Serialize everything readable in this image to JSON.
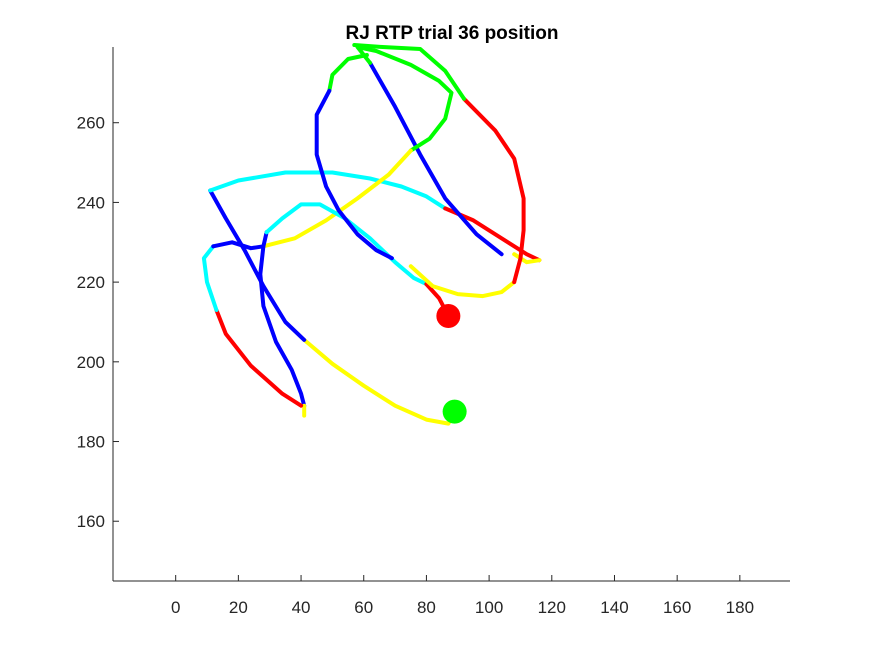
{
  "chart_data": {
    "type": "line",
    "title": "RJ  RTP trial 36 position",
    "xlabel": "",
    "ylabel": "",
    "xlim": [
      -20,
      196
    ],
    "ylim": [
      145,
      279
    ],
    "x_ticks": [
      0,
      20,
      40,
      60,
      80,
      100,
      120,
      140,
      160,
      180
    ],
    "y_ticks": [
      160,
      180,
      200,
      220,
      240,
      260
    ],
    "grid": false,
    "legend": "none",
    "colors": {
      "yellow": "#ffff00",
      "red": "#ff0000",
      "blue": "#0000ff",
      "cyan": "#00ffff",
      "green": "#00ff00"
    },
    "start_marker": {
      "x": 89,
      "y": 187.5,
      "color": "#00ff00"
    },
    "end_marker": {
      "x": 87,
      "y": 211.5,
      "color": "#ff0000"
    },
    "segments": [
      {
        "color": "#ffff00",
        "points": [
          [
            89,
            187.5
          ],
          [
            87,
            184.5
          ],
          [
            80,
            185.5
          ],
          [
            70,
            189
          ],
          [
            60,
            194
          ],
          [
            50,
            199.5
          ],
          [
            41,
            205.5
          ]
        ]
      },
      {
        "color": "#0000ff",
        "points": [
          [
            41,
            205.5
          ],
          [
            35,
            210
          ],
          [
            28,
            219
          ],
          [
            22,
            228
          ],
          [
            16,
            236
          ],
          [
            11,
            243
          ]
        ]
      },
      {
        "color": "#00ffff",
        "points": [
          [
            11,
            243
          ],
          [
            20,
            245.5
          ],
          [
            35,
            247.5
          ],
          [
            50,
            247.5
          ],
          [
            62,
            246
          ],
          [
            72,
            244
          ],
          [
            80,
            241.5
          ],
          [
            86,
            238.5
          ]
        ]
      },
      {
        "color": "#ff0000",
        "points": [
          [
            86,
            238.5
          ],
          [
            95,
            235.5
          ],
          [
            104,
            231
          ],
          [
            112,
            227
          ],
          [
            116,
            225.5
          ]
        ]
      },
      {
        "color": "#ffff00",
        "points": [
          [
            116,
            225.5
          ],
          [
            112,
            225
          ],
          [
            108,
            227
          ]
        ]
      },
      {
        "color": "#0000ff",
        "points": [
          [
            104,
            227
          ],
          [
            96,
            232
          ],
          [
            86,
            241
          ],
          [
            78,
            252
          ],
          [
            70,
            264
          ],
          [
            62,
            275
          ]
        ]
      },
      {
        "color": "#00ff00",
        "points": [
          [
            62,
            275
          ],
          [
            58,
            279
          ],
          [
            64,
            278
          ],
          [
            75,
            274.5
          ],
          [
            84,
            270.5
          ],
          [
            88,
            267.5
          ],
          [
            86,
            261
          ],
          [
            81,
            256
          ],
          [
            75,
            253
          ]
        ]
      },
      {
        "color": "#ffff00",
        "points": [
          [
            75,
            253
          ],
          [
            68,
            247
          ],
          [
            58,
            241
          ],
          [
            48,
            235.5
          ],
          [
            38,
            231
          ],
          [
            28,
            229
          ]
        ]
      },
      {
        "color": "#0000ff",
        "points": [
          [
            28,
            229
          ],
          [
            27,
            222
          ],
          [
            28,
            214
          ],
          [
            32,
            205
          ],
          [
            37,
            198
          ],
          [
            40,
            192
          ],
          [
            41,
            189
          ]
        ]
      },
      {
        "color": "#ffff00",
        "points": [
          [
            41,
            189
          ],
          [
            41,
            186.5
          ]
        ]
      },
      {
        "color": "#ff0000",
        "points": [
          [
            40,
            189
          ],
          [
            34,
            192
          ],
          [
            24,
            199
          ],
          [
            16,
            207
          ],
          [
            13,
            213
          ]
        ]
      },
      {
        "color": "#00ffff",
        "points": [
          [
            13,
            213
          ],
          [
            10,
            220
          ],
          [
            9,
            226
          ],
          [
            12,
            229
          ]
        ]
      },
      {
        "color": "#0000ff",
        "points": [
          [
            12,
            229
          ],
          [
            18,
            230
          ],
          [
            24,
            228.5
          ],
          [
            28,
            229
          ],
          [
            29,
            232.5
          ]
        ]
      },
      {
        "color": "#00ffff",
        "points": [
          [
            29,
            232.5
          ],
          [
            34,
            236
          ],
          [
            40,
            239.5
          ],
          [
            46,
            239.5
          ],
          [
            54,
            236
          ],
          [
            62,
            231
          ],
          [
            70,
            225
          ],
          [
            76,
            221
          ],
          [
            80,
            219.5
          ]
        ]
      },
      {
        "color": "#ff0000",
        "points": [
          [
            80,
            219.5
          ],
          [
            84,
            216
          ],
          [
            87,
            211.5
          ]
        ]
      },
      {
        "color": "#ffff00",
        "points": [
          [
            75,
            224
          ],
          [
            82,
            219
          ],
          [
            90,
            217
          ],
          [
            98,
            216.5
          ],
          [
            104,
            217.5
          ],
          [
            108,
            220
          ]
        ]
      },
      {
        "color": "#ff0000",
        "points": [
          [
            108,
            220
          ],
          [
            110,
            226
          ],
          [
            111,
            233
          ],
          [
            111,
            241
          ],
          [
            108,
            251
          ],
          [
            102,
            258
          ],
          [
            92,
            266
          ]
        ]
      },
      {
        "color": "#00ff00",
        "points": [
          [
            92,
            266
          ],
          [
            86,
            273
          ],
          [
            78,
            278.5
          ],
          [
            66,
            279
          ],
          [
            57,
            279.5
          ]
        ]
      },
      {
        "color": "#00ff00",
        "points": [
          [
            61,
            277
          ],
          [
            55,
            276
          ],
          [
            50,
            272
          ],
          [
            49,
            268
          ]
        ]
      },
      {
        "color": "#0000ff",
        "points": [
          [
            49,
            268
          ],
          [
            45,
            262
          ],
          [
            45,
            252
          ],
          [
            48,
            244
          ],
          [
            52,
            238
          ],
          [
            58,
            232
          ],
          [
            64,
            228
          ],
          [
            69,
            226
          ]
        ]
      }
    ]
  }
}
